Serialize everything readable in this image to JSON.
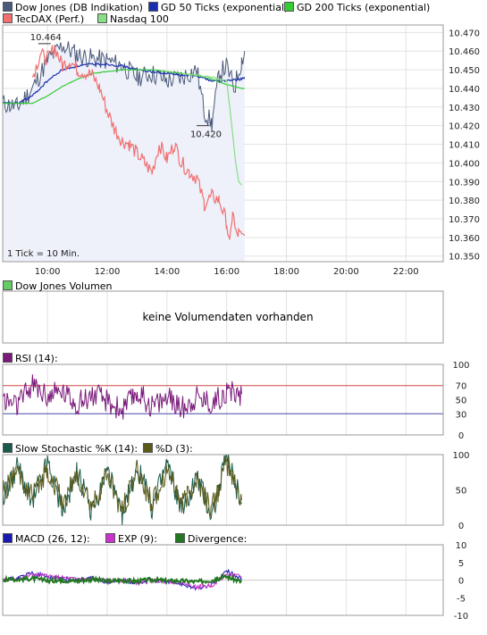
{
  "legend": {
    "row1": [
      {
        "label": "Dow Jones (DB Indikation)",
        "color": "#4a5a7a"
      },
      {
        "label": "GD 50 Ticks (exponential)",
        "color": "#1a2fb0"
      },
      {
        "label": "GD 200 Ticks (exponential)",
        "color": "#33cc33"
      }
    ],
    "row2": [
      {
        "label": "TecDAX (Perf.)",
        "color": "#f07070"
      },
      {
        "label": "Nasdaq 100",
        "color": "#88dd88"
      }
    ]
  },
  "volume": {
    "legend": "Dow Jones Volumen",
    "legend_color": "#66cc66",
    "message": "keine Volumendaten vorhanden"
  },
  "rsi": {
    "legend": "RSI (14):",
    "legend_color": "#7a1a7a"
  },
  "stoch": {
    "legend_k": "Slow Stochastic %K (14):",
    "color_k": "#1a5a4a",
    "legend_d": "%D (3):",
    "color_d": "#5a5a1a"
  },
  "macd": {
    "legend_macd": "MACD (26, 12):",
    "color_macd": "#1a1ab0",
    "legend_exp": "EXP (9):",
    "color_exp": "#cc33cc",
    "legend_div": "Divergence:",
    "color_div": "#227722"
  },
  "chart_data": [
    {
      "type": "line",
      "title": "Dow Jones (DB Indikation)",
      "note": "1 Tick = 10 Min.",
      "x_ticks": [
        "10:00",
        "12:00",
        "14:00",
        "16:00",
        "18:00",
        "20:00",
        "22:00"
      ],
      "y_ticks": [
        10.47,
        10.46,
        10.45,
        10.44,
        10.43,
        10.42,
        10.41,
        10.4,
        10.39,
        10.38,
        10.37,
        10.36,
        10.35
      ],
      "ylim": [
        10.347,
        10.474
      ],
      "xlim_hours": [
        8.5,
        23.25
      ],
      "annotations": [
        {
          "text": "10.464",
          "x": 9.9,
          "y": 10.464
        },
        {
          "text": "10.420",
          "x": 15.2,
          "y": 10.42
        }
      ],
      "series": [
        {
          "name": "Dow Jones (DB Indikation)",
          "color": "#4a5a7a",
          "x": [
            8.5,
            9.0,
            9.5,
            10.0,
            10.5,
            11.0,
            11.5,
            12.0,
            12.5,
            13.0,
            13.5,
            14.0,
            14.5,
            15.0,
            15.25,
            15.5,
            15.75,
            16.0,
            16.25,
            16.5,
            16.6
          ],
          "y": [
            10.432,
            10.43,
            10.44,
            10.455,
            10.463,
            10.458,
            10.456,
            10.455,
            10.452,
            10.446,
            10.448,
            10.444,
            10.446,
            10.45,
            10.428,
            10.421,
            10.448,
            10.452,
            10.44,
            10.455,
            10.46
          ]
        },
        {
          "name": "GD 50 Ticks (exponential)",
          "color": "#1a2fb0",
          "x": [
            8.5,
            9.0,
            9.5,
            10.0,
            10.5,
            11.0,
            11.5,
            12.0,
            12.5,
            13.0,
            13.5,
            14.0,
            14.5,
            15.0,
            15.5,
            16.0,
            16.5,
            16.6
          ],
          "y": [
            10.432,
            10.432,
            10.436,
            10.444,
            10.45,
            10.452,
            10.453,
            10.453,
            10.452,
            10.45,
            10.449,
            10.448,
            10.447,
            10.447,
            10.444,
            10.444,
            10.445,
            10.446
          ]
        },
        {
          "name": "GD 200 Ticks (exponential)",
          "color": "#33cc33",
          "x": [
            8.5,
            9.5,
            10.0,
            10.5,
            11.0,
            11.5,
            12.0,
            12.5,
            13.0,
            13.5,
            14.0,
            14.5,
            15.0,
            15.5,
            16.0,
            16.5,
            16.6
          ],
          "y": [
            10.432,
            10.432,
            10.436,
            10.441,
            10.445,
            10.448,
            10.449,
            10.45,
            10.45,
            10.45,
            10.449,
            10.448,
            10.447,
            10.445,
            10.442,
            10.44,
            10.44
          ]
        },
        {
          "name": "TecDAX (Perf.)",
          "color": "#f07070",
          "x": [
            9.5,
            9.75,
            10.0,
            10.25,
            10.5,
            10.75,
            11.0,
            11.5,
            11.75,
            12.0,
            12.25,
            12.5,
            12.75,
            13.0,
            13.25,
            13.5,
            13.75,
            14.0,
            14.25,
            14.5,
            14.75,
            15.0,
            15.25,
            15.5,
            15.75,
            16.0,
            16.1,
            16.2,
            16.3,
            16.4,
            16.5,
            16.6
          ],
          "y": [
            10.446,
            10.458,
            10.456,
            10.462,
            10.452,
            10.455,
            10.45,
            10.447,
            10.44,
            10.428,
            10.418,
            10.412,
            10.41,
            10.405,
            10.4,
            10.395,
            10.41,
            10.402,
            10.41,
            10.4,
            10.395,
            10.392,
            10.378,
            10.382,
            10.38,
            10.368,
            10.355,
            10.375,
            10.362,
            10.362,
            10.36,
            10.361
          ]
        },
        {
          "name": "Nasdaq 100",
          "color": "#88dd88",
          "x": [
            14.5,
            15.0,
            15.5,
            15.75,
            16.0,
            16.1,
            16.2,
            16.3,
            16.4,
            16.5
          ],
          "y": [
            10.448,
            10.447,
            10.446,
            10.445,
            10.444,
            10.43,
            10.415,
            10.4,
            10.39,
            10.388
          ]
        }
      ]
    },
    {
      "type": "line",
      "title": "RSI (14)",
      "ylim": [
        0,
        100
      ],
      "y_ticks": [
        100,
        70,
        50,
        30,
        0
      ],
      "reference_lines": [
        70,
        30
      ],
      "x": [
        8.5,
        9.0,
        9.5,
        10.0,
        10.5,
        11.0,
        11.5,
        12.0,
        12.5,
        13.0,
        13.5,
        14.0,
        14.5,
        15.0,
        15.5,
        16.0,
        16.5
      ],
      "series": [
        {
          "name": "RSI (14):",
          "color": "#7a1a7a",
          "y": [
            50,
            42,
            72,
            55,
            62,
            45,
            58,
            48,
            35,
            60,
            42,
            52,
            38,
            55,
            45,
            62,
            58
          ]
        }
      ]
    },
    {
      "type": "line",
      "title": "Slow Stochastic %K (14)",
      "ylim": [
        0,
        100
      ],
      "y_ticks": [
        100,
        50,
        0
      ],
      "x": [
        8.5,
        9.0,
        9.5,
        10.0,
        10.5,
        11.0,
        11.5,
        12.0,
        12.5,
        13.0,
        13.5,
        14.0,
        14.5,
        15.0,
        15.5,
        16.0,
        16.5
      ],
      "series": [
        {
          "name": "Slow Stochastic %K (14):",
          "color": "#1a5a4a",
          "y": [
            40,
            85,
            30,
            90,
            20,
            75,
            15,
            80,
            10,
            85,
            25,
            90,
            20,
            70,
            15,
            95,
            30
          ]
        },
        {
          "name": "%D (3):",
          "color": "#5a5a1a",
          "y": [
            45,
            75,
            40,
            80,
            30,
            70,
            25,
            72,
            20,
            78,
            30,
            82,
            28,
            65,
            22,
            88,
            35
          ]
        }
      ]
    },
    {
      "type": "line",
      "title": "MACD (26, 12)",
      "ylim": [
        -10,
        10
      ],
      "y_ticks": [
        10,
        5,
        0,
        -5,
        -10
      ],
      "x": [
        8.5,
        9.0,
        9.5,
        10.0,
        10.5,
        11.0,
        11.5,
        12.0,
        12.5,
        13.0,
        13.5,
        14.0,
        14.5,
        15.0,
        15.5,
        16.0,
        16.5
      ],
      "series": [
        {
          "name": "MACD (26, 12):",
          "color": "#1a1ab0",
          "y": [
            0,
            0.5,
            2,
            1,
            0.5,
            0,
            0.5,
            -0.5,
            0,
            -1,
            0,
            -0.5,
            -1,
            -2.5,
            -1.5,
            2.5,
            0.5
          ]
        },
        {
          "name": "EXP (9):",
          "color": "#cc33cc",
          "y": [
            0,
            0.3,
            1.5,
            1.2,
            0.6,
            0.2,
            0.3,
            -0.2,
            0,
            -0.7,
            -0.2,
            -0.3,
            -0.8,
            -2,
            -1.5,
            1.5,
            1
          ]
        },
        {
          "name": "Divergence:",
          "color": "#227722",
          "y": [
            0,
            0.2,
            0.5,
            -0.2,
            -0.1,
            -0.2,
            0.2,
            -0.3,
            0,
            -0.3,
            0.2,
            -0.2,
            -0.2,
            -0.5,
            0,
            1,
            -0.5
          ]
        }
      ]
    }
  ]
}
